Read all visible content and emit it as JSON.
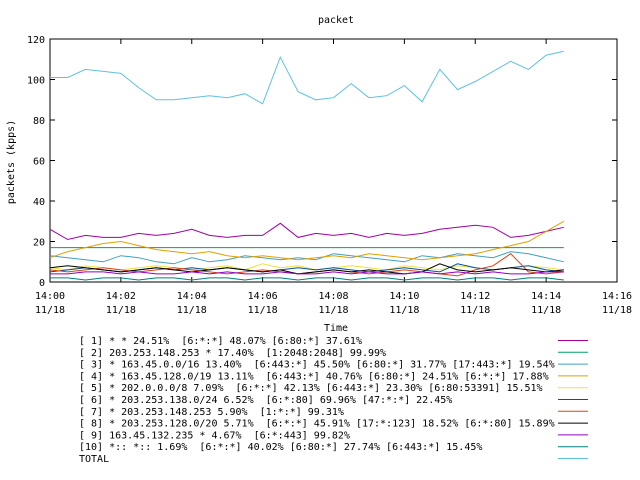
{
  "chart_data": {
    "type": "line",
    "title": "packet",
    "xlabel": "Time",
    "ylabel": "packets (kpps)",
    "ylim": [
      0,
      120
    ],
    "yticks": [
      0,
      20,
      40,
      60,
      80,
      100,
      120
    ],
    "xlim": [
      "14:00",
      "14:16"
    ],
    "xticks": [
      {
        "time": "14:00",
        "date": "11/18"
      },
      {
        "time": "14:02",
        "date": "11/18"
      },
      {
        "time": "14:04",
        "date": "11/18"
      },
      {
        "time": "14:06",
        "date": "11/18"
      },
      {
        "time": "14:08",
        "date": "11/18"
      },
      {
        "time": "14:10",
        "date": "11/18"
      },
      {
        "time": "14:12",
        "date": "11/18"
      },
      {
        "time": "14:14",
        "date": "11/18"
      },
      {
        "time": "14:16",
        "date": "11/18"
      }
    ],
    "grid": false,
    "legend_position": "bottom",
    "x": [
      "14:00:00",
      "14:00:30",
      "14:01:00",
      "14:01:30",
      "14:02:00",
      "14:02:30",
      "14:03:00",
      "14:03:30",
      "14:04:00",
      "14:04:30",
      "14:05:00",
      "14:05:30",
      "14:06:00",
      "14:06:30",
      "14:07:00",
      "14:07:30",
      "14:08:00",
      "14:08:30",
      "14:09:00",
      "14:09:30",
      "14:10:00",
      "14:10:30",
      "14:11:00",
      "14:11:30",
      "14:12:00",
      "14:12:30",
      "14:13:00",
      "14:13:30",
      "14:14:00",
      "14:14:30"
    ],
    "series": [
      {
        "name": "[ 1] * * 24.51%  [6:*:*] 48.07% [6:80:*] 37.61%",
        "color": "#a000a0",
        "values": [
          26,
          21,
          23,
          22,
          22,
          24,
          23,
          24,
          26,
          23,
          22,
          23,
          23,
          29,
          22,
          24,
          23,
          24,
          22,
          24,
          23,
          24,
          26,
          27,
          28,
          27,
          22,
          23,
          25,
          27
        ]
      },
      {
        "name": "[ 2] 203.253.148.253 * 17.40%  [1:2048:2048] 99.99%",
        "color": "#00a060",
        "values": [
          17,
          17,
          17,
          17,
          17,
          17,
          17,
          17,
          17,
          17,
          17,
          17,
          17,
          17,
          17,
          17,
          17,
          17,
          17,
          17,
          17,
          17,
          17,
          17,
          17,
          17,
          17,
          17,
          17,
          17
        ]
      },
      {
        "name": "[ 3] * 163.45.0.0/16 13.40%  [6:443:*] 45.50% [6:80:*] 31.77% [17:443:*] 19.54%",
        "color": "#40a0c0",
        "values": [
          13,
          12,
          11,
          10,
          13,
          12,
          10,
          9,
          12,
          10,
          11,
          13,
          12,
          11,
          12,
          11,
          14,
          13,
          12,
          11,
          10,
          13,
          12,
          14,
          13,
          12,
          15,
          14,
          12,
          10
        ]
      },
      {
        "name": "[ 4] * 163.45.128.0/19 13.11%  [6:443:*] 40.76% [6:80:*] 24.51% [6:*:*] 17.88%",
        "color": "#e0a000",
        "values": [
          12,
          15,
          17,
          19,
          20,
          18,
          16,
          15,
          14,
          15,
          13,
          12,
          13,
          12,
          11,
          12,
          13,
          12,
          14,
          13,
          12,
          11,
          12,
          13,
          14,
          16,
          18,
          20,
          25,
          30
        ]
      },
      {
        "name": "[ 5] * 202.0.0.0/8 7.09%  [6:*:*] 42.13% [6:443:*] 23.30% [6:80:53391] 15.51%",
        "color": "#f0e040",
        "values": [
          7,
          6,
          8,
          7,
          6,
          7,
          8,
          7,
          6,
          7,
          8,
          6,
          9,
          7,
          8,
          6,
          7,
          8,
          7,
          6,
          8,
          7,
          6,
          8,
          7,
          6,
          7,
          8,
          7,
          6
        ]
      },
      {
        "name": "[ 6] * 203.253.138.0/24 6.52%  [6:*:80] 69.96% [47:*:*] 22.45%",
        "color": "#0050a0",
        "values": [
          5,
          6,
          7,
          6,
          5,
          6,
          7,
          6,
          7,
          6,
          7,
          6,
          5,
          6,
          7,
          6,
          7,
          6,
          5,
          6,
          7,
          6,
          5,
          9,
          7,
          6,
          7,
          8,
          6,
          5
        ]
      },
      {
        "name": "[ 7] * 203.253.148.253 5.90%  [1:*:*] 99.31%",
        "color": "#e04010",
        "values": [
          6,
          5,
          6,
          7,
          6,
          5,
          6,
          7,
          6,
          5,
          4,
          5,
          6,
          5,
          4,
          5,
          6,
          5,
          4,
          5,
          6,
          5,
          4,
          3,
          6,
          8,
          14,
          5,
          4,
          5
        ]
      },
      {
        "name": "[ 8] * 203.253.128.0/20 5.71%  [6:*:*] 45.91% [17:*:123] 18.52% [6:*:80] 15.89%",
        "color": "#000000",
        "values": [
          7,
          8,
          7,
          6,
          5,
          6,
          7,
          6,
          5,
          6,
          7,
          6,
          5,
          6,
          4,
          5,
          6,
          5,
          6,
          5,
          4,
          5,
          9,
          6,
          5,
          6,
          7,
          6,
          5,
          6
        ]
      },
      {
        "name": "[ 9] 163.45.132.235 * 4.67%  [6:*:443] 99.82%",
        "color": "#9000c0",
        "values": [
          4,
          4,
          5,
          5,
          4,
          5,
          4,
          4,
          5,
          4,
          5,
          4,
          4,
          5,
          4,
          4,
          5,
          4,
          5,
          4,
          4,
          5,
          4,
          5,
          4,
          5,
          4,
          4,
          5,
          5
        ]
      },
      {
        "name": "[10] *:: *:: 1.69%  [6:*:*] 40.02% [6:80:*] 27.74% [6:443:*] 15.45%",
        "color": "#008080",
        "values": [
          2,
          2,
          1,
          2,
          2,
          1,
          2,
          2,
          1,
          2,
          2,
          1,
          2,
          2,
          1,
          2,
          2,
          1,
          2,
          2,
          1,
          2,
          2,
          1,
          2,
          2,
          1,
          2,
          2,
          1
        ]
      },
      {
        "name": "TOTAL",
        "color": "#60c0e0",
        "values": [
          101,
          101,
          105,
          104,
          103,
          96,
          90,
          90,
          91,
          92,
          91,
          93,
          88,
          111,
          94,
          90,
          91,
          98,
          91,
          92,
          97,
          89,
          105,
          95,
          99,
          104,
          109,
          105,
          112,
          114
        ]
      }
    ]
  }
}
